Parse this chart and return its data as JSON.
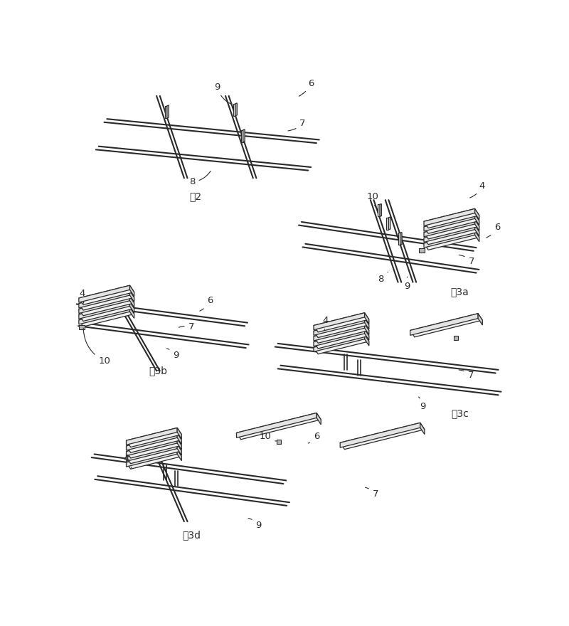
{
  "bg": "#ffffff",
  "lc": "#2a2a2a",
  "fc_top": "#f5f5f5",
  "fc_front": "#e0e0e0",
  "fc_side": "#c8c8c8",
  "fig2_label": "图2",
  "fig3a_label": "图3a",
  "fig3b_label": "图3b",
  "fig3c_label": "图3c",
  "fig3d_label": "图3d",
  "lw_rail": 1.6,
  "lw_post": 1.0,
  "lw_slab": 0.9
}
